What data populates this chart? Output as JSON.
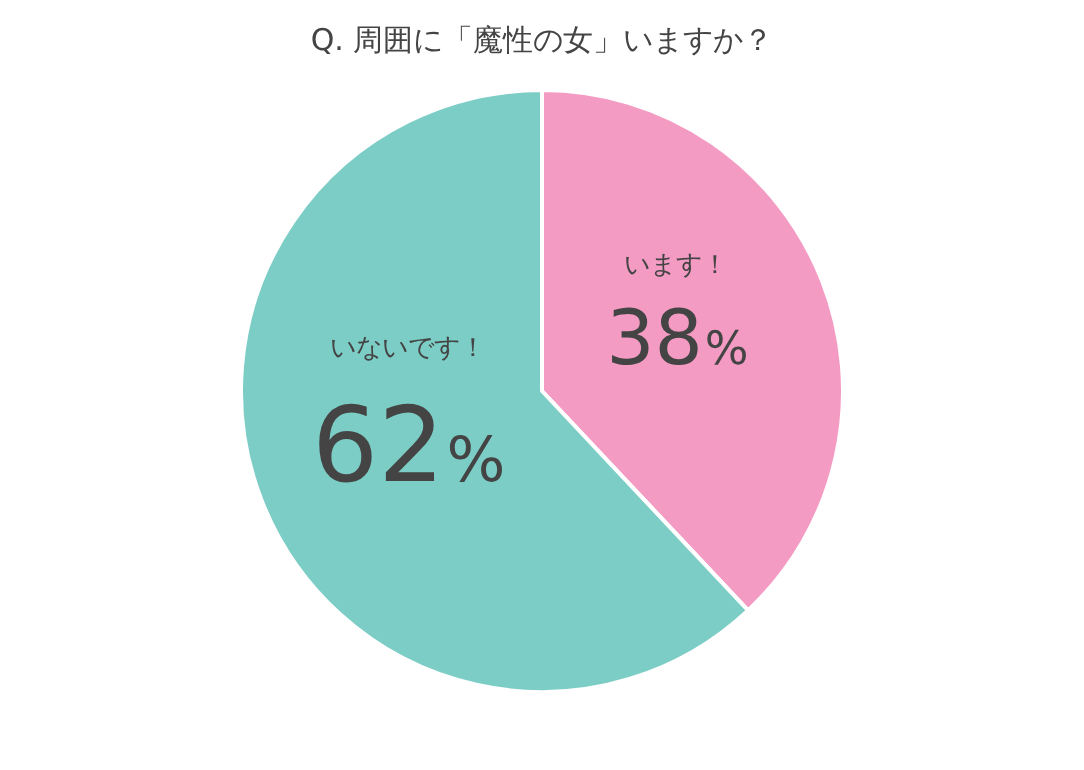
{
  "chart_data": {
    "type": "pie",
    "title": "Q. 周囲に「魔性の女」いますか？",
    "categories": [
      "います！",
      "いないです！"
    ],
    "values": [
      38,
      62
    ],
    "colors": [
      "#f49bc4",
      "#7ccdc6"
    ],
    "value_labels": [
      "38%",
      "62%"
    ],
    "legend": false
  }
}
